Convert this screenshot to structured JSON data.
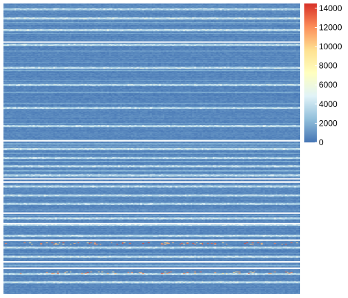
{
  "chart_data": {
    "type": "heatmap",
    "title": "",
    "xlabel": "",
    "ylabel": "",
    "color_scale": {
      "min": 0,
      "max": 14500,
      "ticks": [
        0,
        2000,
        4000,
        6000,
        8000,
        10000,
        12000,
        14000
      ],
      "tick_labels": [
        "0",
        "2000",
        "4000",
        "6000",
        "8000",
        "10000",
        "12000",
        "14000"
      ],
      "colors": [
        "#4575b4",
        "#91bfdb",
        "#e0f3f8",
        "#ffffbf",
        "#fee090",
        "#fc8d59",
        "#d73027"
      ],
      "legend_position": "right"
    },
    "n_columns": 160,
    "background_value": 600,
    "row_band_breaks_fraction": [
      0.133,
      0.473,
      0.604,
      0.615,
      0.722,
      0.758,
      0.815,
      0.89,
      0.912
    ],
    "light_stripe_rows_fraction": [
      0.02,
      0.05,
      0.09,
      0.14,
      0.22,
      0.28,
      0.36,
      0.42,
      0.5,
      0.53,
      0.56,
      0.59,
      0.63,
      0.66,
      0.69,
      0.74,
      0.76,
      0.8,
      0.84,
      0.87,
      0.93,
      0.96
    ],
    "hot_rows_fraction": [
      0.825,
      0.925
    ],
    "hot_values_range": [
      9000,
      14000
    ]
  }
}
